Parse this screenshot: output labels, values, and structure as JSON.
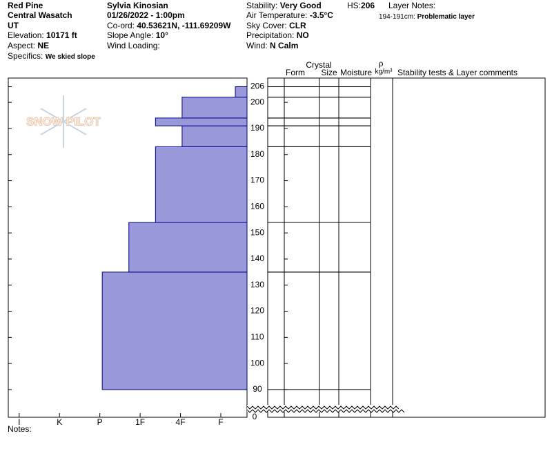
{
  "header": {
    "site": [
      "Red Pine",
      "Central Wasatch",
      "UT"
    ],
    "elevation": {
      "label": "Elevation:",
      "value": "10171 ft"
    },
    "aspect": {
      "label": "Aspect:",
      "value": "NE"
    },
    "specifics": {
      "label": "Specifics:",
      "value": "We skied slope"
    },
    "observer": "Sylvia Kinosian",
    "datetime": "01/26/2022 - 1:00pm",
    "coord": {
      "label": "Co-ord:",
      "value": "40.53621N, -111.69209W"
    },
    "slope_angle": {
      "label": "Slope Angle:",
      "value": "10°"
    },
    "wind_loading": {
      "label": "Wind Loading:"
    },
    "stability": {
      "label": "Stability:",
      "value": "Very Good"
    },
    "air_temperature": {
      "label": "Air Temperature:",
      "value": "-3.5°C"
    },
    "sky_cover": {
      "label": "Sky Cover:",
      "value": "CLR"
    },
    "precipitation": {
      "label": "Precipitation:",
      "value": "NO"
    },
    "wind": {
      "label": "Wind:",
      "value": "N Calm"
    },
    "hs": {
      "label": "HS:",
      "value": "206"
    },
    "layer_notes": {
      "label": "Layer Notes:",
      "range": "194-191cm:",
      "note": "Problematic layer"
    },
    "notes": {
      "label": "Notes:"
    },
    "watermark": "SNOW PILOT"
  },
  "chart_data": {
    "type": "profile",
    "layers": [
      {
        "bottom": 90,
        "top": 135,
        "hardness": 3.94
      },
      {
        "bottom": 135,
        "top": 154,
        "hardness": 3.28
      },
      {
        "bottom": 154,
        "top": 183,
        "hardness": 2.62
      },
      {
        "bottom": 183,
        "top": 191,
        "hardness": 1.96
      },
      {
        "bottom": 191,
        "top": 194,
        "hardness": 2.62
      },
      {
        "bottom": 194,
        "top": 202,
        "hardness": 1.96
      },
      {
        "bottom": 202,
        "top": 206,
        "hardness": 0.64
      }
    ],
    "color": "#9999d9",
    "edge_color": "#00008b",
    "ylim": [
      79.4,
      209.3
    ],
    "yticks": [
      90,
      100,
      110,
      120,
      130,
      140,
      150,
      160,
      170,
      180,
      190,
      200,
      206
    ],
    "ground_label": "0",
    "xlim": [
      6.27,
      0.35
    ],
    "xticks": [
      {
        "value": 6,
        "label": "I"
      },
      {
        "value": 5,
        "label": "K"
      },
      {
        "value": 4,
        "label": "P"
      },
      {
        "value": 3,
        "label": "1F"
      },
      {
        "value": 2,
        "label": "4F"
      },
      {
        "value": 1,
        "label": "F"
      }
    ],
    "columns": {
      "crystal": "Crystal",
      "form": "Form",
      "size": "Size",
      "moisture": "Moisture",
      "rho": "ρ",
      "density_unit": "kg/m³",
      "comments": "Stability tests & Layer comments"
    }
  }
}
